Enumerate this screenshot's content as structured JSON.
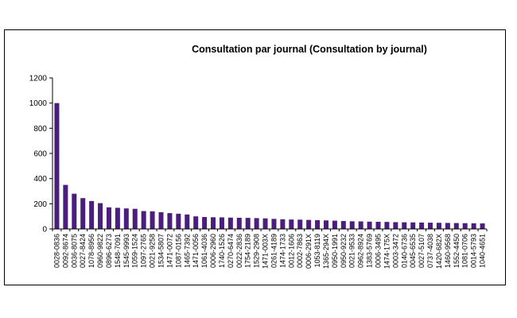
{
  "chart_data": {
    "type": "bar",
    "title": "Consultation par journal (Consultation by journal)",
    "xlabel": "",
    "ylabel": "",
    "ylim": [
      0,
      1200
    ],
    "yticks": [
      0,
      200,
      400,
      600,
      800,
      1000,
      1200
    ],
    "grid": false,
    "legend": "none",
    "bar_color": "#4B1E7E",
    "categories": [
      "0028-0836",
      "0092-8674",
      "0036-8075",
      "0027-8424",
      "1078-8956",
      "0960-9822",
      "0896-6273",
      "1548-7091",
      "1545-9993",
      "1059-1524",
      "1097-2765",
      "0021-9258",
      "1534-5807",
      "1471-0072",
      "1087-0156",
      "1465-7392",
      "1471-0056",
      "1061-4036",
      "0006-2960",
      "1740-1526",
      "0270-6474",
      "0022-2836",
      "1754-2189",
      "1529-2908",
      "1471-003X",
      "0261-4189",
      "1474-1733",
      "0012-1606",
      "0002-7863",
      "0006-291X",
      "1053-8119",
      "1365-294X",
      "0950-1991",
      "0950-9232",
      "0021-9533",
      "0962-8924",
      "1383-5769",
      "0006-3495",
      "1474-175X",
      "0003-3472",
      "0140-6736",
      "0045-6535",
      "0027-5107",
      "0737-4038",
      "1420-682X",
      "1460-9568",
      "1552-4450",
      "1081-0706",
      "0014-5793",
      "1040-4651"
    ],
    "values": [
      1000,
      350,
      280,
      245,
      222,
      205,
      172,
      168,
      163,
      160,
      142,
      140,
      133,
      126,
      121,
      115,
      100,
      95,
      93,
      92,
      90,
      89,
      88,
      86,
      84,
      80,
      77,
      75,
      74,
      72,
      70,
      68,
      66,
      63,
      61,
      60,
      58,
      57,
      56,
      54,
      53,
      52,
      51,
      50,
      49,
      48,
      47,
      46,
      45,
      44
    ]
  }
}
